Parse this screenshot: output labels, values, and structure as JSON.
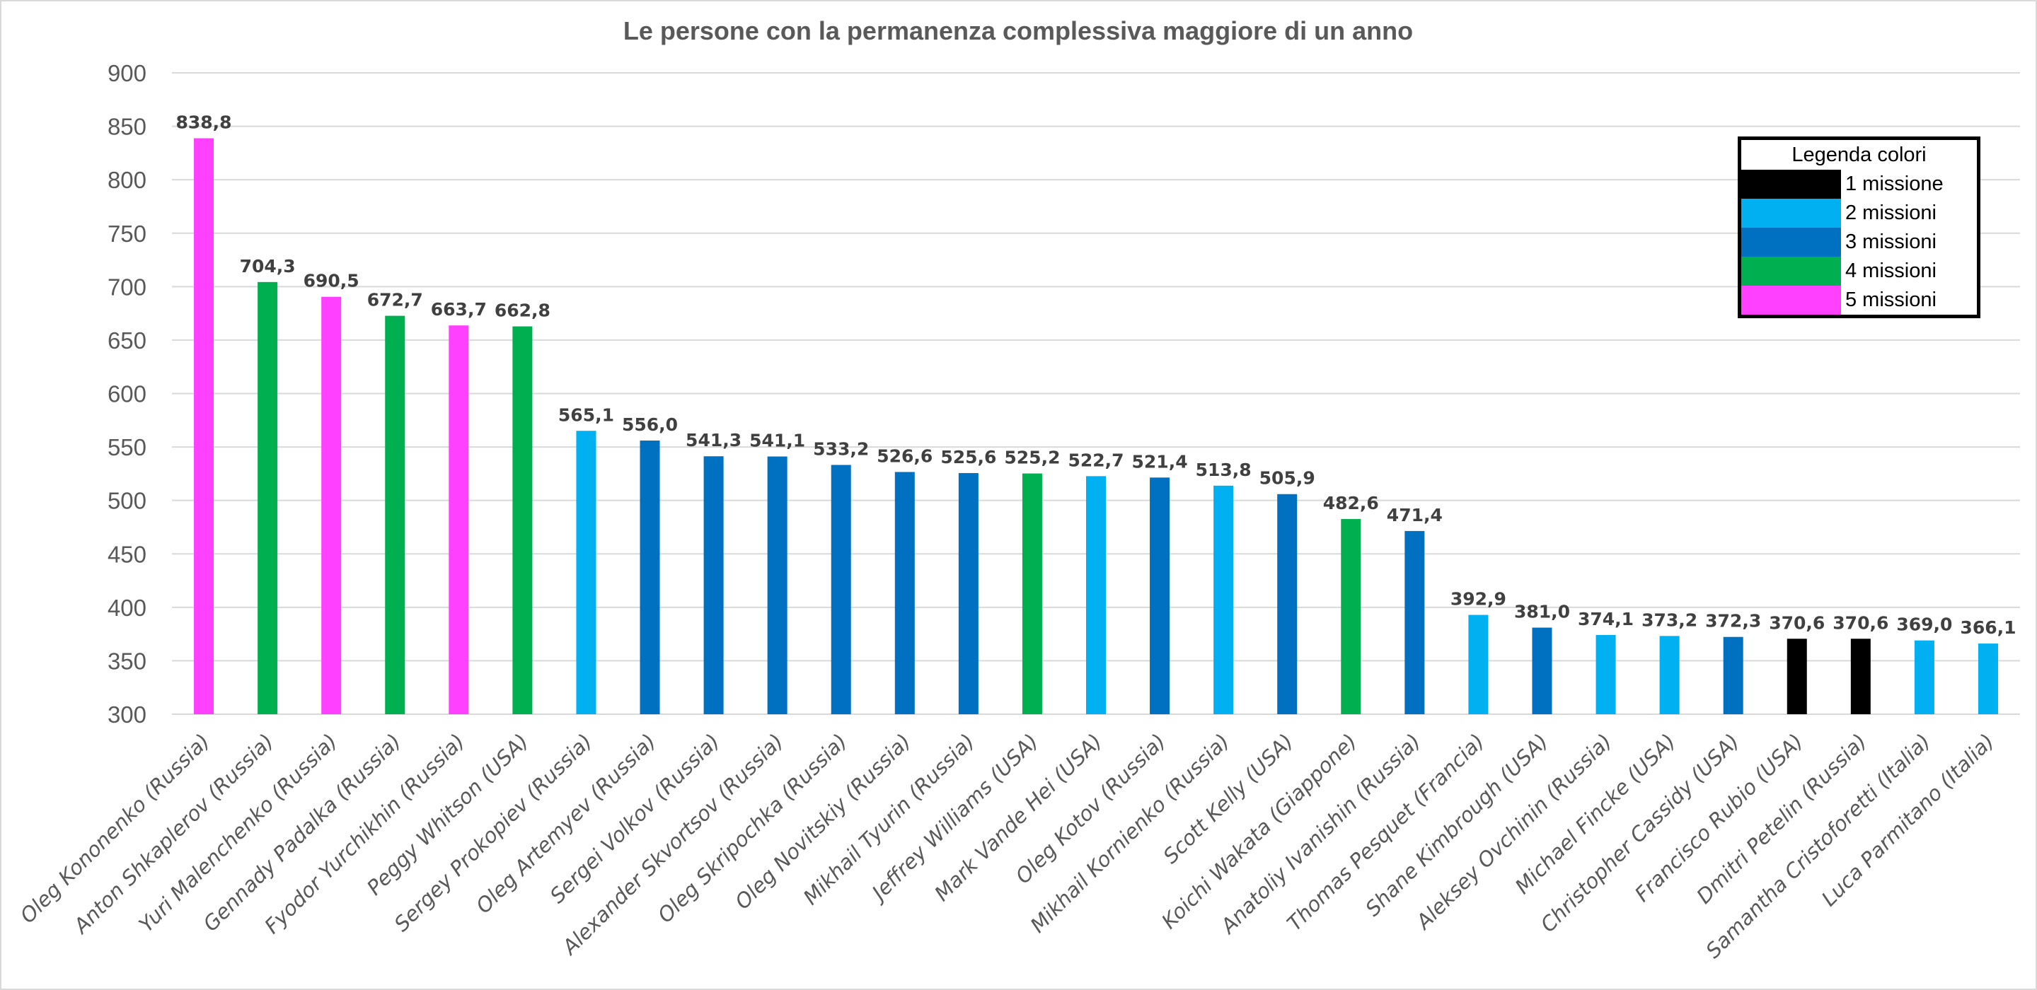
{
  "chart_data": {
    "type": "bar",
    "title": "Le persone con la permanenza complessiva maggiore di un anno",
    "xlabel": "",
    "ylabel": "",
    "ylim": [
      300,
      900
    ],
    "yticks": [
      300,
      350,
      400,
      450,
      500,
      550,
      600,
      650,
      700,
      750,
      800,
      850,
      900
    ],
    "grid": true,
    "categories": [
      "Oleg Kononenko (Russia)",
      "Anton Shkaplerov  (Russia)",
      "Yuri Malenchenko (Russia)",
      "Gennady Padalka (Russia)",
      "Fyodor Yurchikhin (Russia)",
      "Peggy Whitson (USA)",
      "Sergey Prokopiev (Russia)",
      "Oleg Artemyev  (Russia)",
      "Sergei Volkov (Russia)",
      "Alexander Skvortsov (Russia)",
      "Oleg Skripochka  (Russia)",
      "Oleg Novitskiy (Russia)",
      "Mikhail Tyurin (Russia)",
      "Jeffrey  Williams (USA)",
      "Mark Vande Hei (USA)",
      "Oleg Kotov (Russia)",
      "Mikhail Kornienko (Russia)",
      "Scott Kelly (USA)",
      "Koichi Wakata (Giappone)",
      "Anatoliy Ivanishin (Russia)",
      "Thomas Pesquet (Francia)",
      "Shane Kimbrough (USA)",
      "Aleksey Ovchinin (Russia)",
      "Michael Fincke (USA)",
      "Christopher Cassidy (USA)",
      "Francisco Rubio (USA)",
      "Dmitri Petelin (Russia)",
      "Samantha Cristoforetti (Italia)",
      "Luca Parmitano (Italia)"
    ],
    "values": [
      838.8,
      704.3,
      690.5,
      672.7,
      663.7,
      662.8,
      565.1,
      556.0,
      541.3,
      541.1,
      533.2,
      526.6,
      525.6,
      525.2,
      522.7,
      521.4,
      513.8,
      505.9,
      482.6,
      471.4,
      392.9,
      381.0,
      374.1,
      373.2,
      372.3,
      370.6,
      370.6,
      369.0,
      366.1
    ],
    "value_labels": [
      "838,8",
      "704,3",
      "690,5",
      "672,7",
      "663,7",
      "662,8",
      "565,1",
      "556,0",
      "541,3",
      "541,1",
      "533,2",
      "526,6",
      "525,6",
      "525,2",
      "522,7",
      "521,4",
      "513,8",
      "505,9",
      "482,6",
      "471,4",
      "392,9",
      "381,0",
      "374,1",
      "373,2",
      "372,3",
      "370,6",
      "370,6",
      "369,0",
      "366,1"
    ],
    "missions": [
      5,
      4,
      5,
      4,
      5,
      4,
      2,
      3,
      3,
      3,
      3,
      3,
      3,
      4,
      2,
      3,
      2,
      3,
      4,
      3,
      2,
      3,
      2,
      2,
      3,
      1,
      1,
      2,
      2
    ],
    "legend": {
      "title": "Legenda colori",
      "position": "top-right",
      "entries": [
        {
          "missions": 1,
          "label": "1 missione",
          "color": "#000000"
        },
        {
          "missions": 2,
          "label": "2 missioni",
          "color": "#00B0F0"
        },
        {
          "missions": 3,
          "label": "3 missioni",
          "color": "#0070C0"
        },
        {
          "missions": 4,
          "label": "4 missioni",
          "color": "#00B050"
        },
        {
          "missions": 5,
          "label": "5 missioni",
          "color": "#FF40FF"
        }
      ]
    }
  }
}
